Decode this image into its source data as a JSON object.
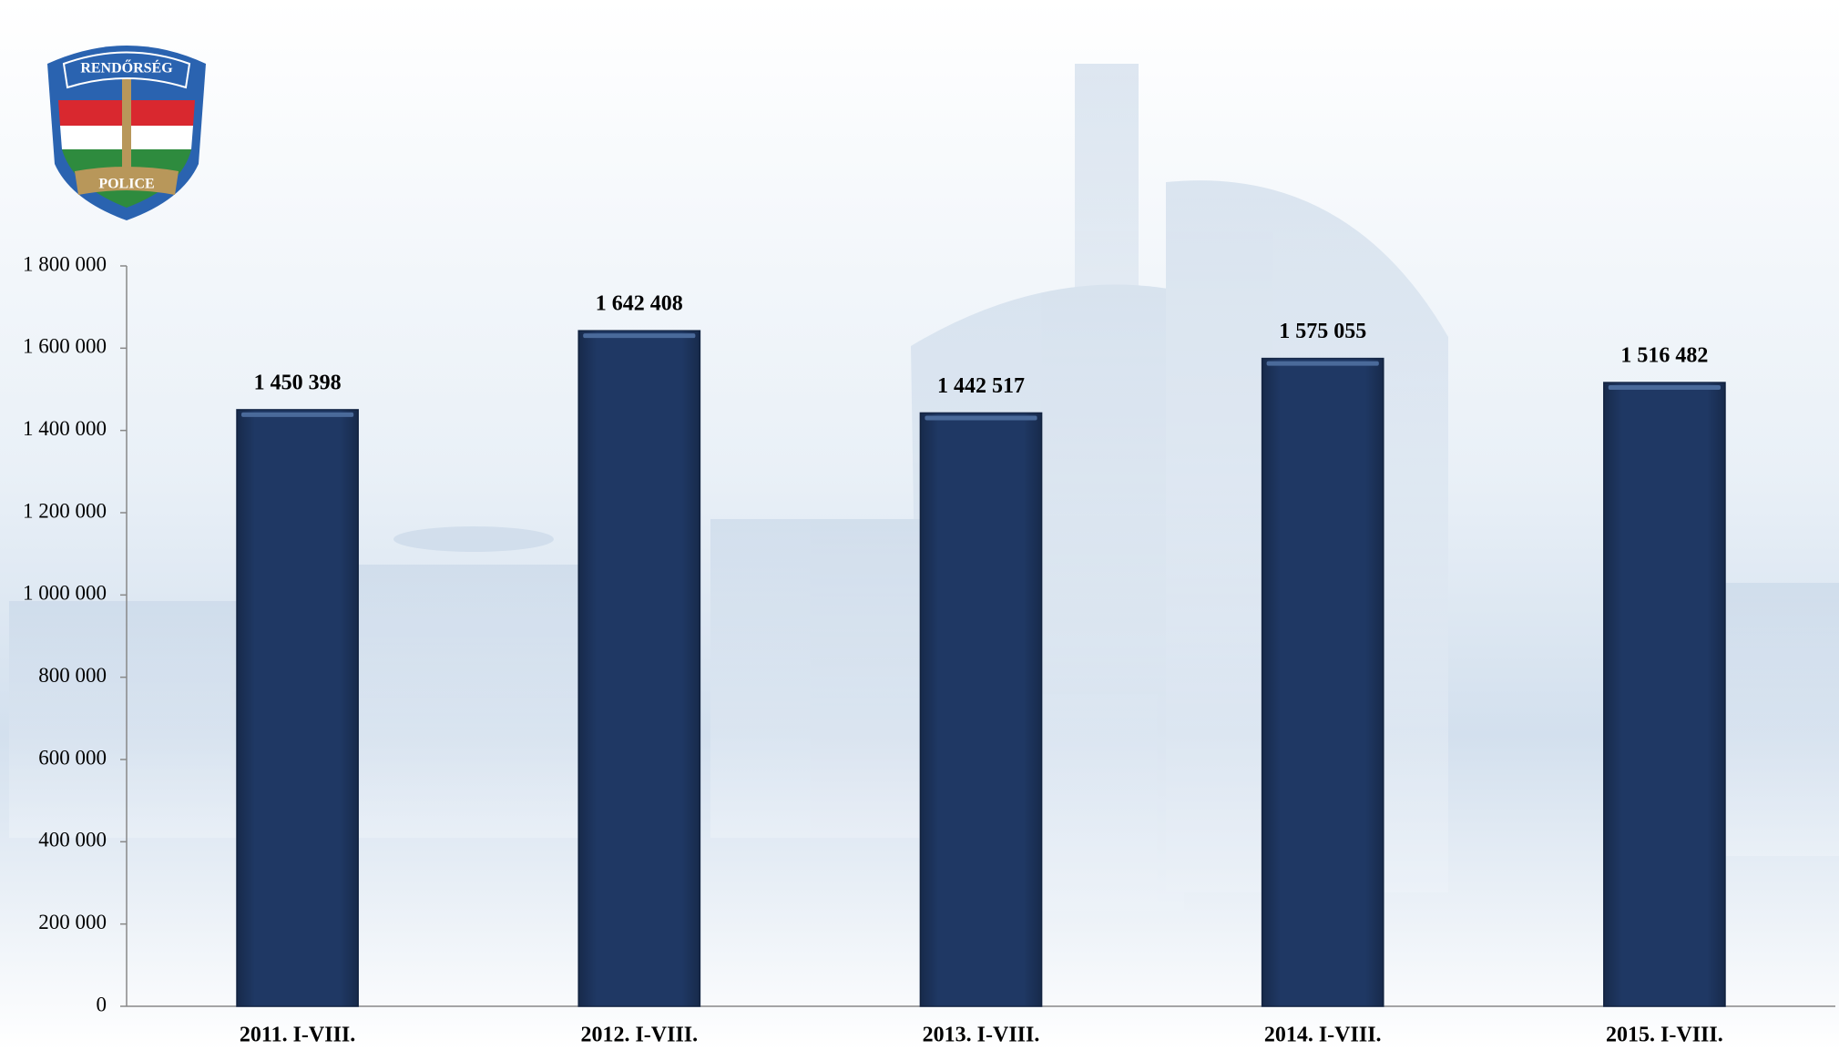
{
  "logo": {
    "top": "RENDŐRSÉG",
    "bottom": "POLICE"
  },
  "chart_data": {
    "type": "bar",
    "categories": [
      "2011. I-VIII.",
      "2012. I-VIII.",
      "2013. I-VIII.",
      "2014. I-VIII.",
      "2015. I-VIII."
    ],
    "values": [
      1450398,
      1642408,
      1442517,
      1575055,
      1516482
    ],
    "value_labels": [
      "1 450 398",
      "1 642 408",
      "1 442 517",
      "1 575 055",
      "1 516 482"
    ],
    "color": "#1f3864",
    "ylim": [
      0,
      1800000
    ],
    "yticks": [
      0,
      {
        "value": 200000,
        "label": "200 000"
      },
      {
        "value": 400000,
        "label": "400 000"
      },
      {
        "value": 600000,
        "label": "600 000"
      },
      {
        "value": 800000,
        "label": "800 000"
      },
      {
        "value": 1000000,
        "label": "1 000 000"
      },
      {
        "value": 1200000,
        "label": "1 200 000"
      },
      {
        "value": 1400000,
        "label": "1 400 000"
      },
      {
        "value": 1600000,
        "label": "1 600 000"
      },
      {
        "value": 1800000,
        "label": "1 800 000"
      }
    ],
    "grid": false
  }
}
